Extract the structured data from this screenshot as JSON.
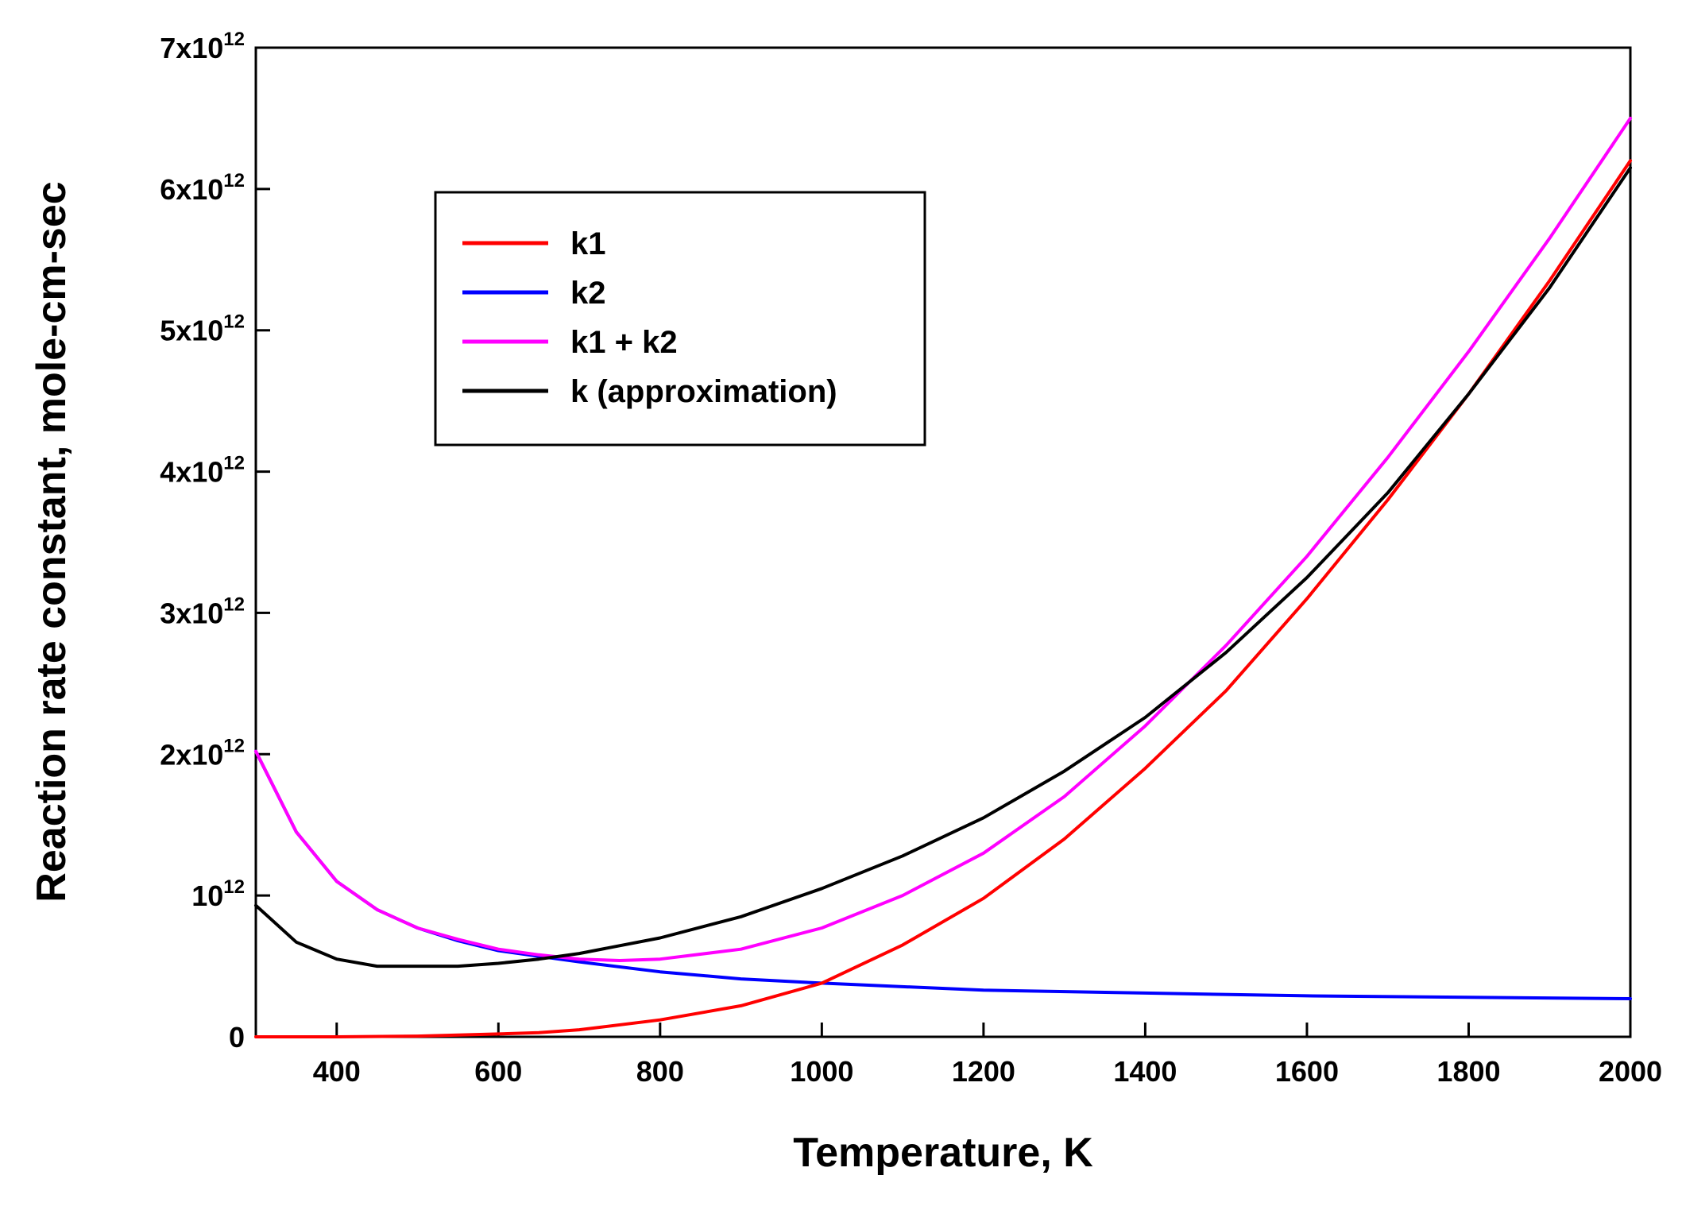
{
  "chart_data": {
    "type": "line",
    "title": "",
    "xlabel": "Temperature, K",
    "ylabel": "Reaction rate constant, mole-cm-sec",
    "xlim": [
      300,
      2000
    ],
    "ylim": [
      0,
      7000000000000.0
    ],
    "grid": false,
    "legend_position": "top-left",
    "x_ticks": [
      400,
      600,
      800,
      1000,
      1200,
      1400,
      1600,
      1800,
      2000
    ],
    "x_tick_labels": [
      "400",
      "600",
      "800",
      "1000",
      "1200",
      "1400",
      "1600",
      "1800",
      "2000"
    ],
    "y_ticks": [
      {
        "value": 0,
        "base": "0",
        "exp": ""
      },
      {
        "value": 1000000000000.0,
        "base": "10",
        "exp": "12"
      },
      {
        "value": 2000000000000.0,
        "base": "2x10",
        "exp": "12"
      },
      {
        "value": 3000000000000.0,
        "base": "3x10",
        "exp": "12"
      },
      {
        "value": 4000000000000.0,
        "base": "4x10",
        "exp": "12"
      },
      {
        "value": 5000000000000.0,
        "base": "5x10",
        "exp": "12"
      },
      {
        "value": 6000000000000.0,
        "base": "6x10",
        "exp": "12"
      },
      {
        "value": 7000000000000.0,
        "base": "7x10",
        "exp": "12"
      }
    ],
    "series": [
      {
        "name": "k1",
        "color": "#ff0000",
        "x": [
          300,
          400,
          500,
          600,
          650,
          700,
          800,
          900,
          1000,
          1100,
          1200,
          1300,
          1400,
          1500,
          1600,
          1700,
          1800,
          1900,
          2000
        ],
        "y": [
          0,
          0,
          5000000000.0,
          20000000000.0,
          30000000000.0,
          50000000000.0,
          120000000000.0,
          220000000000.0,
          380000000000.0,
          650000000000.0,
          980000000000.0,
          1400000000000.0,
          1900000000000.0,
          2450000000000.0,
          3100000000000.0,
          3800000000000.0,
          4550000000000.0,
          5350000000000.0,
          6200000000000.0
        ]
      },
      {
        "name": "k2",
        "color": "#0000ff",
        "x": [
          300,
          350,
          400,
          450,
          500,
          550,
          600,
          650,
          700,
          800,
          900,
          1000,
          1200,
          1400,
          1600,
          1800,
          2000
        ],
        "y": [
          2020000000000.0,
          1450000000000.0,
          1100000000000.0,
          900000000000.0,
          770000000000.0,
          680000000000.0,
          610000000000.0,
          570000000000.0,
          530000000000.0,
          460000000000.0,
          410000000000.0,
          380000000000.0,
          330000000000.0,
          310000000000.0,
          290000000000.0,
          280000000000.0,
          270000000000.0
        ]
      },
      {
        "name": "k1 + k2",
        "color": "#ff00ff",
        "x": [
          300,
          350,
          400,
          450,
          500,
          550,
          600,
          650,
          700,
          750,
          800,
          900,
          1000,
          1100,
          1200,
          1300,
          1400,
          1500,
          1600,
          1700,
          1800,
          1900,
          2000
        ],
        "y": [
          2020000000000.0,
          1450000000000.0,
          1100000000000.0,
          900000000000.0,
          770000000000.0,
          690000000000.0,
          620000000000.0,
          580000000000.0,
          550000000000.0,
          540000000000.0,
          550000000000.0,
          620000000000.0,
          770000000000.0,
          1000000000000.0,
          1300000000000.0,
          1700000000000.0,
          2200000000000.0,
          2770000000000.0,
          3400000000000.0,
          4100000000000.0,
          4850000000000.0,
          5650000000000.0,
          6500000000000.0
        ]
      },
      {
        "name": "k (approximation)",
        "color": "#000000",
        "x": [
          300,
          350,
          400,
          450,
          500,
          550,
          600,
          650,
          700,
          800,
          900,
          1000,
          1100,
          1200,
          1300,
          1400,
          1500,
          1600,
          1700,
          1800,
          1900,
          2000
        ],
        "y": [
          930000000000.0,
          670000000000.0,
          550000000000.0,
          500000000000.0,
          500000000000.0,
          500000000000.0,
          520000000000.0,
          550000000000.0,
          590000000000.0,
          700000000000.0,
          850000000000.0,
          1050000000000.0,
          1280000000000.0,
          1550000000000.0,
          1880000000000.0,
          2260000000000.0,
          2720000000000.0,
          3250000000000.0,
          3850000000000.0,
          4550000000000.0,
          5300000000000.0,
          6150000000000.0
        ]
      }
    ]
  }
}
